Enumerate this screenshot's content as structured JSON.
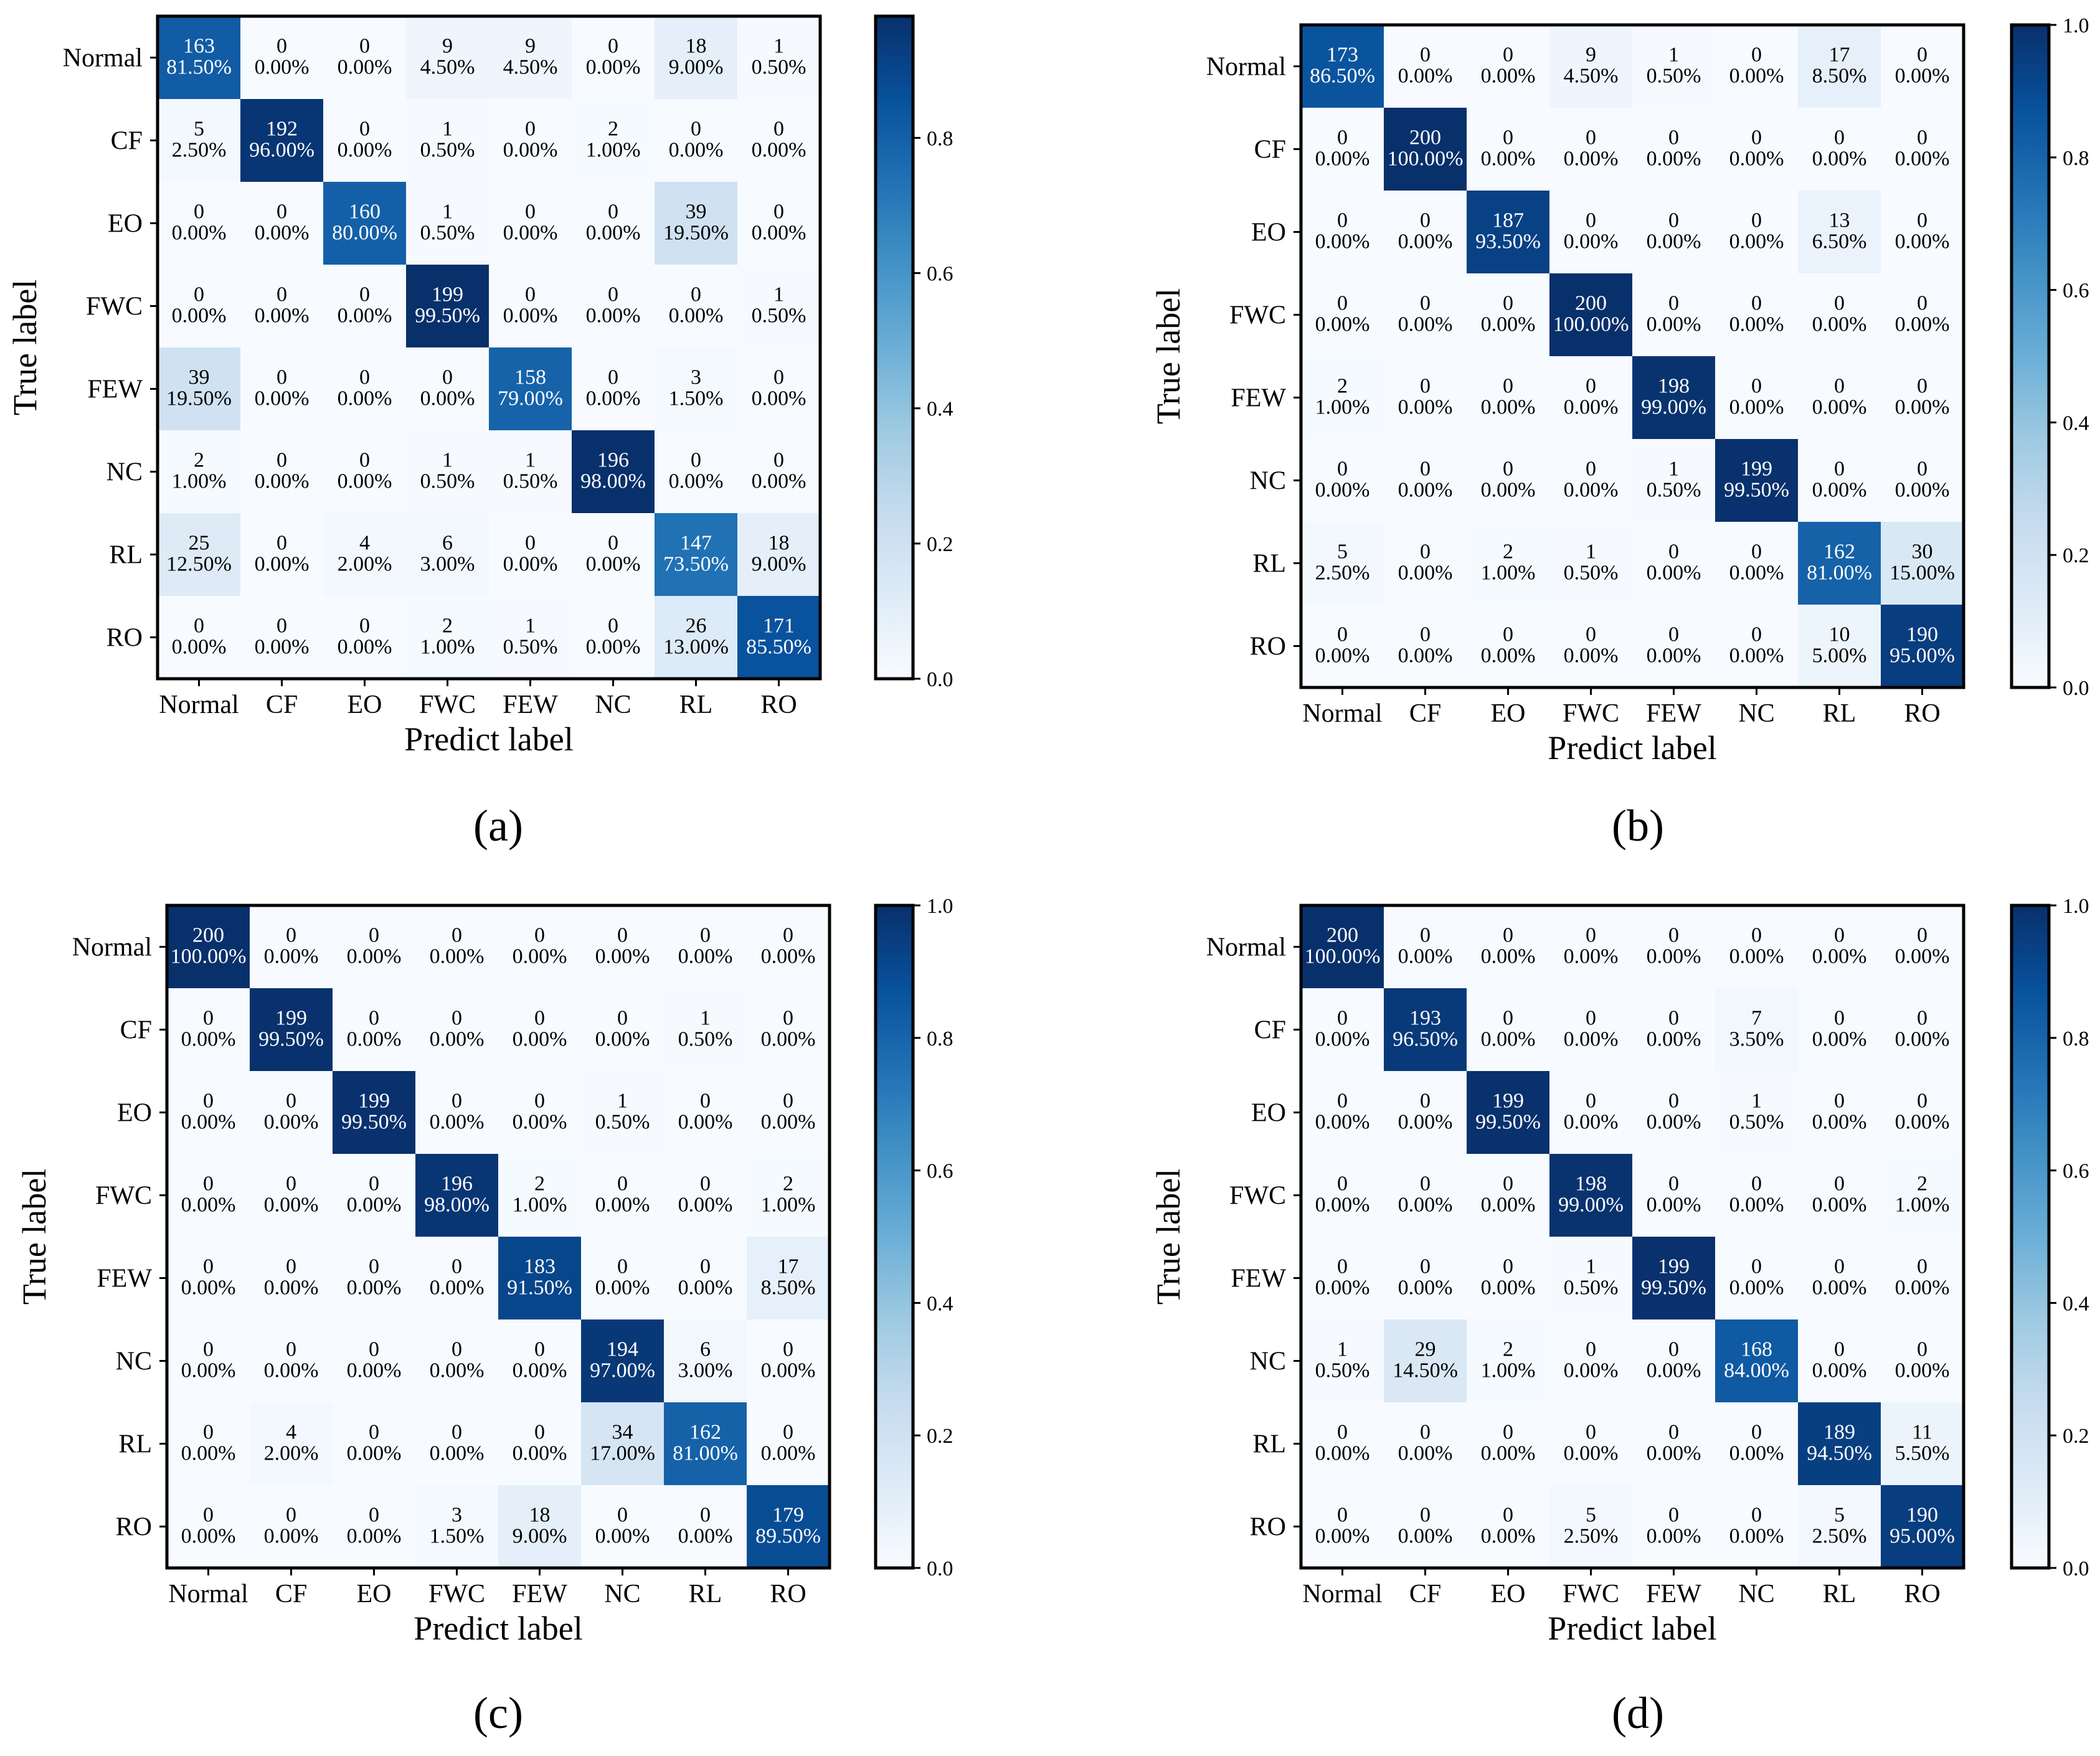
{
  "chart_data": [
    {
      "type": "heatmap",
      "panel_label": "(a)",
      "xlabel": "Predict label",
      "ylabel": "True label",
      "categories": [
        "Normal",
        "CF",
        "EO",
        "FWC",
        "FEW",
        "NC",
        "RL",
        "RO"
      ],
      "colorbar": {
        "ticks": [
          "0.0",
          "0.2",
          "0.4",
          "0.6",
          "0.8"
        ],
        "vmin": 0,
        "vmax": 0.98,
        "tick_values": [
          0,
          0.2,
          0.4,
          0.6,
          0.8
        ]
      },
      "counts": [
        [
          163,
          0,
          0,
          9,
          9,
          0,
          18,
          1
        ],
        [
          5,
          192,
          0,
          1,
          0,
          2,
          0,
          0
        ],
        [
          0,
          0,
          160,
          1,
          0,
          0,
          39,
          0
        ],
        [
          0,
          0,
          0,
          199,
          0,
          0,
          0,
          1
        ],
        [
          39,
          0,
          0,
          0,
          158,
          0,
          3,
          0
        ],
        [
          2,
          0,
          0,
          1,
          1,
          196,
          0,
          0
        ],
        [
          25,
          0,
          4,
          6,
          0,
          0,
          147,
          18
        ],
        [
          0,
          0,
          0,
          2,
          1,
          0,
          26,
          171
        ]
      ],
      "percents": [
        [
          "81.50%",
          "0.00%",
          "0.00%",
          "4.50%",
          "4.50%",
          "0.00%",
          "9.00%",
          "0.50%"
        ],
        [
          "2.50%",
          "96.00%",
          "0.00%",
          "0.50%",
          "0.00%",
          "1.00%",
          "0.00%",
          "0.00%"
        ],
        [
          "0.00%",
          "0.00%",
          "80.00%",
          "0.50%",
          "0.00%",
          "0.00%",
          "19.50%",
          "0.00%"
        ],
        [
          "0.00%",
          "0.00%",
          "0.00%",
          "99.50%",
          "0.00%",
          "0.00%",
          "0.00%",
          "0.50%"
        ],
        [
          "19.50%",
          "0.00%",
          "0.00%",
          "0.00%",
          "79.00%",
          "0.00%",
          "1.50%",
          "0.00%"
        ],
        [
          "1.00%",
          "0.00%",
          "0.00%",
          "0.50%",
          "0.50%",
          "98.00%",
          "0.00%",
          "0.00%"
        ],
        [
          "12.50%",
          "0.00%",
          "2.00%",
          "3.00%",
          "0.00%",
          "0.00%",
          "73.50%",
          "9.00%"
        ],
        [
          "0.00%",
          "0.00%",
          "0.00%",
          "1.00%",
          "0.50%",
          "0.00%",
          "13.00%",
          "85.50%"
        ]
      ]
    },
    {
      "type": "heatmap",
      "panel_label": "(b)",
      "xlabel": "Predict label",
      "ylabel": "True label",
      "categories": [
        "Normal",
        "CF",
        "EO",
        "FWC",
        "FEW",
        "NC",
        "RL",
        "RO"
      ],
      "colorbar": {
        "ticks": [
          "0.0",
          "0.2",
          "0.4",
          "0.6",
          "0.8",
          "1.0"
        ],
        "vmin": 0,
        "vmax": 1.0,
        "tick_values": [
          0,
          0.2,
          0.4,
          0.6,
          0.8,
          1.0
        ]
      },
      "counts": [
        [
          173,
          0,
          0,
          9,
          1,
          0,
          17,
          0
        ],
        [
          0,
          200,
          0,
          0,
          0,
          0,
          0,
          0
        ],
        [
          0,
          0,
          187,
          0,
          0,
          0,
          13,
          0
        ],
        [
          0,
          0,
          0,
          200,
          0,
          0,
          0,
          0
        ],
        [
          2,
          0,
          0,
          0,
          198,
          0,
          0,
          0
        ],
        [
          0,
          0,
          0,
          0,
          1,
          199,
          0,
          0
        ],
        [
          5,
          0,
          2,
          1,
          0,
          0,
          162,
          30
        ],
        [
          0,
          0,
          0,
          0,
          0,
          0,
          10,
          190
        ]
      ],
      "percents": [
        [
          "86.50%",
          "0.00%",
          "0.00%",
          "4.50%",
          "0.50%",
          "0.00%",
          "8.50%",
          "0.00%"
        ],
        [
          "0.00%",
          "100.00%",
          "0.00%",
          "0.00%",
          "0.00%",
          "0.00%",
          "0.00%",
          "0.00%"
        ],
        [
          "0.00%",
          "0.00%",
          "93.50%",
          "0.00%",
          "0.00%",
          "0.00%",
          "6.50%",
          "0.00%"
        ],
        [
          "0.00%",
          "0.00%",
          "0.00%",
          "100.00%",
          "0.00%",
          "0.00%",
          "0.00%",
          "0.00%"
        ],
        [
          "1.00%",
          "0.00%",
          "0.00%",
          "0.00%",
          "99.00%",
          "0.00%",
          "0.00%",
          "0.00%"
        ],
        [
          "0.00%",
          "0.00%",
          "0.00%",
          "0.00%",
          "0.50%",
          "99.50%",
          "0.00%",
          "0.00%"
        ],
        [
          "2.50%",
          "0.00%",
          "1.00%",
          "0.50%",
          "0.00%",
          "0.00%",
          "81.00%",
          "15.00%"
        ],
        [
          "0.00%",
          "0.00%",
          "0.00%",
          "0.00%",
          "0.00%",
          "0.00%",
          "5.00%",
          "95.00%"
        ]
      ]
    },
    {
      "type": "heatmap",
      "panel_label": "(c)",
      "xlabel": "Predict label",
      "ylabel": "True label",
      "categories": [
        "Normal",
        "CF",
        "EO",
        "FWC",
        "FEW",
        "NC",
        "RL",
        "RO"
      ],
      "colorbar": {
        "ticks": [
          "0.0",
          "0.2",
          "0.4",
          "0.6",
          "0.8",
          "1.0"
        ],
        "vmin": 0,
        "vmax": 1.0,
        "tick_values": [
          0,
          0.2,
          0.4,
          0.6,
          0.8,
          1.0
        ]
      },
      "counts": [
        [
          200,
          0,
          0,
          0,
          0,
          0,
          0,
          0
        ],
        [
          0,
          199,
          0,
          0,
          0,
          0,
          1,
          0
        ],
        [
          0,
          0,
          199,
          0,
          0,
          1,
          0,
          0
        ],
        [
          0,
          0,
          0,
          196,
          2,
          0,
          0,
          2
        ],
        [
          0,
          0,
          0,
          0,
          183,
          0,
          0,
          17
        ],
        [
          0,
          0,
          0,
          0,
          0,
          194,
          6,
          0
        ],
        [
          0,
          4,
          0,
          0,
          0,
          34,
          162,
          0
        ],
        [
          0,
          0,
          0,
          3,
          18,
          0,
          0,
          179
        ]
      ],
      "percents": [
        [
          "100.00%",
          "0.00%",
          "0.00%",
          "0.00%",
          "0.00%",
          "0.00%",
          "0.00%",
          "0.00%"
        ],
        [
          "0.00%",
          "99.50%",
          "0.00%",
          "0.00%",
          "0.00%",
          "0.00%",
          "0.50%",
          "0.00%"
        ],
        [
          "0.00%",
          "0.00%",
          "99.50%",
          "0.00%",
          "0.00%",
          "0.50%",
          "0.00%",
          "0.00%"
        ],
        [
          "0.00%",
          "0.00%",
          "0.00%",
          "98.00%",
          "1.00%",
          "0.00%",
          "0.00%",
          "1.00%"
        ],
        [
          "0.00%",
          "0.00%",
          "0.00%",
          "0.00%",
          "91.50%",
          "0.00%",
          "0.00%",
          "8.50%"
        ],
        [
          "0.00%",
          "0.00%",
          "0.00%",
          "0.00%",
          "0.00%",
          "97.00%",
          "3.00%",
          "0.00%"
        ],
        [
          "0.00%",
          "2.00%",
          "0.00%",
          "0.00%",
          "0.00%",
          "17.00%",
          "81.00%",
          "0.00%"
        ],
        [
          "0.00%",
          "0.00%",
          "0.00%",
          "1.50%",
          "9.00%",
          "0.00%",
          "0.00%",
          "89.50%"
        ]
      ]
    },
    {
      "type": "heatmap",
      "panel_label": "(d)",
      "xlabel": "Predict label",
      "ylabel": "True label",
      "categories": [
        "Normal",
        "CF",
        "EO",
        "FWC",
        "FEW",
        "NC",
        "RL",
        "RO"
      ],
      "colorbar": {
        "ticks": [
          "0.0",
          "0.2",
          "0.4",
          "0.6",
          "0.8",
          "1.0"
        ],
        "vmin": 0,
        "vmax": 1.0,
        "tick_values": [
          0,
          0.2,
          0.4,
          0.6,
          0.8,
          1.0
        ]
      },
      "counts": [
        [
          200,
          0,
          0,
          0,
          0,
          0,
          0,
          0
        ],
        [
          0,
          193,
          0,
          0,
          0,
          7,
          0,
          0
        ],
        [
          0,
          0,
          199,
          0,
          0,
          1,
          0,
          0
        ],
        [
          0,
          0,
          0,
          198,
          0,
          0,
          0,
          2
        ],
        [
          0,
          0,
          0,
          1,
          199,
          0,
          0,
          0
        ],
        [
          1,
          29,
          2,
          0,
          0,
          168,
          0,
          0
        ],
        [
          0,
          0,
          0,
          0,
          0,
          0,
          189,
          11
        ],
        [
          0,
          0,
          0,
          5,
          0,
          0,
          5,
          190
        ]
      ],
      "percents": [
        [
          "100.00%",
          "0.00%",
          "0.00%",
          "0.00%",
          "0.00%",
          "0.00%",
          "0.00%",
          "0.00%"
        ],
        [
          "0.00%",
          "96.50%",
          "0.00%",
          "0.00%",
          "0.00%",
          "3.50%",
          "0.00%",
          "0.00%"
        ],
        [
          "0.00%",
          "0.00%",
          "99.50%",
          "0.00%",
          "0.00%",
          "0.50%",
          "0.00%",
          "0.00%"
        ],
        [
          "0.00%",
          "0.00%",
          "0.00%",
          "99.00%",
          "0.00%",
          "0.00%",
          "0.00%",
          "1.00%"
        ],
        [
          "0.00%",
          "0.00%",
          "0.00%",
          "0.50%",
          "99.50%",
          "0.00%",
          "0.00%",
          "0.00%"
        ],
        [
          "0.50%",
          "14.50%",
          "1.00%",
          "0.00%",
          "0.00%",
          "84.00%",
          "0.00%",
          "0.00%"
        ],
        [
          "0.00%",
          "0.00%",
          "0.00%",
          "0.00%",
          "0.00%",
          "0.00%",
          "94.50%",
          "5.50%"
        ],
        [
          "0.00%",
          "0.00%",
          "0.00%",
          "2.50%",
          "0.00%",
          "0.00%",
          "2.50%",
          "95.00%"
        ]
      ]
    }
  ]
}
